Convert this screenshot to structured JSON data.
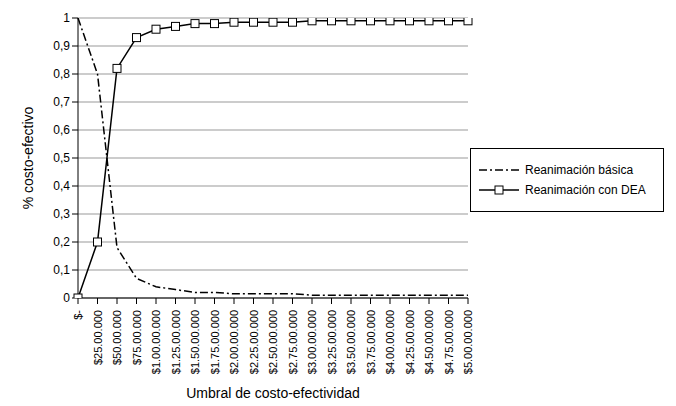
{
  "chart_data": {
    "type": "line",
    "x_label": "Umbral de costo-efectividad",
    "y_label": "% costo-efectivo",
    "categories": [
      "$-",
      "$25.00.000",
      "$50.00.000",
      "$75.00.000",
      "$1.00.00.000",
      "$1.25.00.000",
      "$1.50.00.000",
      "$1.75.00.000",
      "$2.00.00.000",
      "$2.25.00.000",
      "$2.50.00.000",
      "$2.75.00.000",
      "$3.00.00.000",
      "$3.25.00.000",
      "$3.50.00.000",
      "$3.75.00.000",
      "$4.00.00.000",
      "$4.25.00.000",
      "$4.50.00.000",
      "$4.75.00.000",
      "$5.00.00.000"
    ],
    "series": [
      {
        "name": "Reanimación básica",
        "color": "#000000",
        "line_style": "dashdot",
        "marker": "none",
        "values": [
          1,
          0.8,
          0.18,
          0.07,
          0.04,
          0.03,
          0.02,
          0.02,
          0.015,
          0.015,
          0.015,
          0.015,
          0.01,
          0.01,
          0.01,
          0.01,
          0.01,
          0.01,
          0.01,
          0.01,
          0.01
        ]
      },
      {
        "name": "Reanimación con DEA",
        "color": "#000000",
        "line_style": "solid",
        "marker": "square",
        "values": [
          0,
          0.2,
          0.82,
          0.93,
          0.96,
          0.97,
          0.98,
          0.98,
          0.985,
          0.985,
          0.985,
          0.985,
          0.99,
          0.99,
          0.99,
          0.99,
          0.99,
          0.99,
          0.99,
          0.99,
          0.99
        ]
      }
    ],
    "ylim": [
      0,
      1
    ],
    "yticks": [
      0,
      {
        "value": 0.1,
        "label": "0,1"
      },
      {
        "value": 0.2,
        "label": "0,2"
      },
      {
        "value": 0.3,
        "label": "0,3"
      },
      {
        "value": 0.4,
        "label": "0,4"
      },
      {
        "value": 0.5,
        "label": "0,5"
      },
      {
        "value": 0.6,
        "label": "0,6"
      },
      {
        "value": 0.7,
        "label": "0,7"
      },
      {
        "value": 0.8,
        "label": "0,8"
      },
      {
        "value": 0.9,
        "label": "0,9"
      },
      1
    ],
    "grid": true,
    "legend": "right"
  }
}
